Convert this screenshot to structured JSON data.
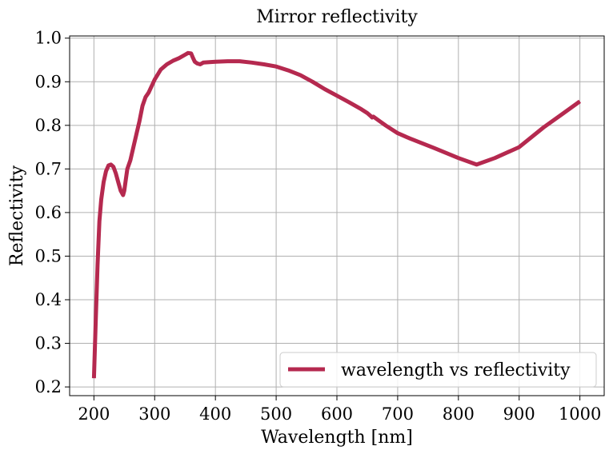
{
  "chart_data": {
    "type": "line",
    "title": "Mirror reflectivity",
    "xlabel": "Wavelength [nm]",
    "ylabel": "Reflectivity",
    "xlim": [
      160,
      1040
    ],
    "ylim": [
      0.18,
      1.005
    ],
    "xticks": [
      200,
      300,
      400,
      500,
      600,
      700,
      800,
      900,
      1000
    ],
    "yticks": [
      0.2,
      0.3,
      0.4,
      0.5,
      0.6,
      0.7,
      0.8,
      0.9,
      1.0
    ],
    "xtick_labels": [
      "200",
      "300",
      "400",
      "500",
      "600",
      "700",
      "800",
      "900",
      "1000"
    ],
    "ytick_labels": [
      "0.2",
      "0.3",
      "0.4",
      "0.5",
      "0.6",
      "0.7",
      "0.8",
      "0.9",
      "1.0"
    ],
    "grid": true,
    "legend_position": "bottom-right",
    "series": [
      {
        "name": "wavelength vs reflectivity",
        "color": "#b5294f",
        "x": [
          200,
          203,
          206,
          209,
          212,
          216,
          220,
          224,
          228,
          232,
          236,
          240,
          244,
          248,
          250,
          252,
          255,
          260,
          265,
          270,
          275,
          280,
          285,
          290,
          300,
          310,
          320,
          330,
          340,
          350,
          355,
          360,
          363,
          366,
          370,
          375,
          380,
          390,
          400,
          420,
          440,
          460,
          480,
          500,
          520,
          540,
          560,
          580,
          600,
          620,
          640,
          650,
          655,
          658,
          660,
          670,
          680,
          700,
          720,
          760,
          800,
          830,
          860,
          900,
          940,
          970,
          1000
        ],
        "y": [
          0.22,
          0.35,
          0.48,
          0.58,
          0.63,
          0.67,
          0.695,
          0.708,
          0.71,
          0.705,
          0.69,
          0.67,
          0.65,
          0.64,
          0.65,
          0.67,
          0.7,
          0.72,
          0.75,
          0.78,
          0.81,
          0.845,
          0.865,
          0.875,
          0.905,
          0.928,
          0.94,
          0.948,
          0.954,
          0.962,
          0.966,
          0.965,
          0.955,
          0.946,
          0.942,
          0.94,
          0.944,
          0.945,
          0.946,
          0.947,
          0.947,
          0.944,
          0.94,
          0.935,
          0.926,
          0.915,
          0.9,
          0.883,
          0.868,
          0.853,
          0.837,
          0.828,
          0.822,
          0.818,
          0.82,
          0.81,
          0.8,
          0.782,
          0.77,
          0.748,
          0.725,
          0.71,
          0.725,
          0.75,
          0.795,
          0.825,
          0.855
        ]
      }
    ]
  }
}
